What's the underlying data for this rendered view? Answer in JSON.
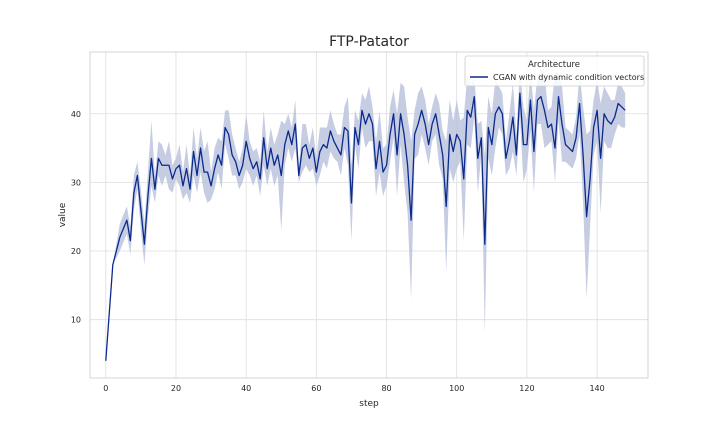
{
  "chart_data": {
    "type": "line",
    "title": "FTP-Patator",
    "xlabel": "step",
    "ylabel": "value",
    "xlim": [
      -4.5,
      154.5
    ],
    "ylim": [
      1.5,
      49
    ],
    "xticks": [
      0,
      20,
      40,
      60,
      80,
      100,
      120,
      140
    ],
    "yticks": [
      10,
      20,
      30,
      40
    ],
    "grid": true,
    "legend": {
      "title": "Architecture",
      "placement": "top-right"
    },
    "colors": {
      "line": "#0a2a8c",
      "band": "#b8c1dc",
      "grid": "#dddddd",
      "frame": "#cccccc"
    },
    "series": [
      {
        "name": "CGAN with dynamic condition vectors",
        "points": [
          [
            0,
            4
          ],
          [
            2,
            18
          ],
          [
            4,
            22
          ],
          [
            6,
            24.5
          ],
          [
            7,
            21.5
          ],
          [
            8,
            28.5
          ],
          [
            9,
            31
          ],
          [
            10,
            26
          ],
          [
            11,
            21
          ],
          [
            12,
            28
          ],
          [
            13,
            33.5
          ],
          [
            14,
            29
          ],
          [
            15,
            33.5
          ],
          [
            16,
            32.5
          ],
          [
            17,
            32.5
          ],
          [
            18,
            32.5
          ],
          [
            19,
            30.5
          ],
          [
            20,
            32
          ],
          [
            21,
            32.5
          ],
          [
            22,
            29.5
          ],
          [
            23,
            32
          ],
          [
            24,
            29
          ],
          [
            25,
            34.5
          ],
          [
            26,
            31
          ],
          [
            27,
            35
          ],
          [
            28,
            31.5
          ],
          [
            29,
            31.5
          ],
          [
            30,
            29.5
          ],
          [
            31,
            32
          ],
          [
            32,
            34
          ],
          [
            33,
            32.5
          ],
          [
            34,
            38
          ],
          [
            35,
            37
          ],
          [
            36,
            34
          ],
          [
            37,
            33
          ],
          [
            38,
            31
          ],
          [
            39,
            32.5
          ],
          [
            40,
            36
          ],
          [
            41,
            33.5
          ],
          [
            42,
            32
          ],
          [
            43,
            33
          ],
          [
            44,
            30.5
          ],
          [
            45,
            36.5
          ],
          [
            46,
            32
          ],
          [
            47,
            35
          ],
          [
            48,
            32.5
          ],
          [
            49,
            34
          ],
          [
            50,
            31
          ],
          [
            51,
            35.5
          ],
          [
            52,
            37.5
          ],
          [
            53,
            35.5
          ],
          [
            54,
            38.5
          ],
          [
            55,
            31
          ],
          [
            56,
            35
          ],
          [
            57,
            35.5
          ],
          [
            58,
            33.5
          ],
          [
            59,
            35
          ],
          [
            60,
            31.5
          ],
          [
            61,
            34.5
          ],
          [
            62,
            35.5
          ],
          [
            63,
            35
          ],
          [
            64,
            37.5
          ],
          [
            65,
            36
          ],
          [
            66,
            35
          ],
          [
            67,
            34
          ],
          [
            68,
            38
          ],
          [
            69,
            37.5
          ],
          [
            70,
            27
          ],
          [
            71,
            38
          ],
          [
            72,
            35.5
          ],
          [
            73,
            40.5
          ],
          [
            74,
            38.5
          ],
          [
            75,
            40
          ],
          [
            76,
            38.5
          ],
          [
            77,
            32
          ],
          [
            78,
            36
          ],
          [
            79,
            31.5
          ],
          [
            80,
            32.5
          ],
          [
            81,
            37
          ],
          [
            82,
            40
          ],
          [
            83,
            34
          ],
          [
            84,
            40
          ],
          [
            85,
            37
          ],
          [
            86,
            32.5
          ],
          [
            87,
            24.5
          ],
          [
            88,
            37
          ],
          [
            89,
            38.5
          ],
          [
            90,
            40.5
          ],
          [
            91,
            38.5
          ],
          [
            92,
            35.5
          ],
          [
            93,
            38.5
          ],
          [
            94,
            40
          ],
          [
            95,
            37
          ],
          [
            96,
            34
          ],
          [
            97,
            26.5
          ],
          [
            98,
            37
          ],
          [
            99,
            34.5
          ],
          [
            100,
            37
          ],
          [
            101,
            36
          ],
          [
            102,
            30.5
          ],
          [
            103,
            40.5
          ],
          [
            104,
            39.5
          ],
          [
            105,
            42.5
          ],
          [
            106,
            33.5
          ],
          [
            107,
            36.5
          ],
          [
            108,
            21
          ],
          [
            109,
            38
          ],
          [
            110,
            35.5
          ],
          [
            111,
            40
          ],
          [
            112,
            41
          ],
          [
            113,
            40
          ],
          [
            114,
            33.5
          ],
          [
            115,
            36
          ],
          [
            116,
            39.5
          ],
          [
            117,
            34
          ],
          [
            118,
            43
          ],
          [
            119,
            35.5
          ],
          [
            120,
            35.5
          ],
          [
            121,
            42
          ],
          [
            122,
            34.5
          ],
          [
            123,
            42
          ],
          [
            124,
            42.5
          ],
          [
            125,
            40.5
          ],
          [
            126,
            38
          ],
          [
            127,
            38.5
          ],
          [
            128,
            35
          ],
          [
            129,
            42.5
          ],
          [
            130,
            38.5
          ],
          [
            131,
            35.5
          ],
          [
            132,
            35
          ],
          [
            133,
            34.5
          ],
          [
            134,
            36.5
          ],
          [
            135,
            41.5
          ],
          [
            136,
            34
          ],
          [
            137,
            25
          ],
          [
            138,
            30.5
          ],
          [
            139,
            38
          ],
          [
            140,
            40.5
          ],
          [
            141,
            33.5
          ],
          [
            142,
            40
          ],
          [
            143,
            39
          ],
          [
            144,
            38.5
          ],
          [
            145,
            39.5
          ],
          [
            146,
            41.5
          ],
          [
            147,
            41
          ],
          [
            148,
            40.5
          ]
        ],
        "ci_lower": [
          4,
          18,
          20,
          22.5,
          19.5,
          26,
          29,
          23,
          18,
          25,
          29.5,
          27,
          31,
          29.5,
          31,
          29,
          28.5,
          30.5,
          29.5,
          27.5,
          28.5,
          27,
          31,
          28.5,
          31.5,
          28.5,
          27,
          27.5,
          29,
          31.5,
          29,
          35.5,
          33.5,
          31,
          31,
          29,
          30,
          32,
          31,
          29.5,
          31,
          28,
          32.5,
          29.5,
          32,
          29.5,
          31,
          23,
          32.5,
          35,
          33,
          35,
          30,
          31.5,
          32.5,
          31.5,
          32,
          29.5,
          31,
          33,
          32,
          34.5,
          33.5,
          33,
          31,
          35,
          32.5,
          21.5,
          35.5,
          32,
          38,
          35,
          36,
          36,
          28,
          31.5,
          28,
          29.5,
          33,
          36.5,
          28,
          35.5,
          30,
          25.5,
          13,
          33.5,
          34,
          37,
          35,
          32.5,
          36,
          37,
          32.5,
          30.5,
          17,
          32,
          30,
          32,
          33,
          21.5,
          35.5,
          35,
          39.5,
          28.5,
          34,
          8,
          33.5,
          31,
          35,
          38,
          37,
          31,
          32,
          34.5,
          31,
          39.5,
          30,
          32,
          37.5,
          28.5,
          38.5,
          38.5,
          35,
          35.5,
          36,
          30,
          39,
          33,
          33,
          32.5,
          32,
          33.5,
          37,
          27,
          13,
          23.5,
          34,
          36,
          25.5,
          36,
          35,
          35,
          37,
          38.5,
          38,
          38
        ],
        "ci_upper": [
          4,
          18,
          24,
          26.5,
          23.5,
          31,
          33,
          29,
          24,
          31.5,
          39,
          31,
          36,
          35.5,
          34,
          36,
          32.5,
          33.5,
          35.5,
          31.5,
          35.5,
          31,
          38,
          33.5,
          38,
          34.5,
          36,
          31.5,
          35,
          36.5,
          36,
          40.5,
          40.5,
          37,
          35,
          33,
          35,
          40,
          36,
          34.5,
          35,
          33,
          40.5,
          34.5,
          38,
          35.5,
          37,
          39,
          38.5,
          40,
          38,
          42,
          32,
          38.5,
          38.5,
          35.5,
          38,
          33.5,
          38,
          38,
          38,
          40.5,
          38.5,
          37,
          37,
          41,
          42.5,
          32.5,
          40.5,
          39,
          43,
          42,
          44,
          41,
          36,
          40.5,
          35,
          35.5,
          41,
          43.5,
          40,
          44.5,
          44,
          39.5,
          36,
          40.5,
          43,
          44,
          42,
          38.5,
          41,
          43,
          41.5,
          37.5,
          36,
          42,
          39,
          42,
          39,
          39.5,
          45.5,
          44,
          45.5,
          38.5,
          39,
          34,
          42.5,
          40,
          45,
          44,
          43,
          36,
          40,
          44.5,
          37,
          46.5,
          41,
          39,
          46.5,
          40.5,
          45.5,
          46.5,
          46,
          40.5,
          41,
          46,
          46,
          44,
          38,
          37.5,
          37,
          39.5,
          46,
          41,
          37,
          37.5,
          42,
          45,
          41.5,
          44,
          43,
          42,
          42,
          44.5,
          44,
          43
        ]
      }
    ]
  }
}
